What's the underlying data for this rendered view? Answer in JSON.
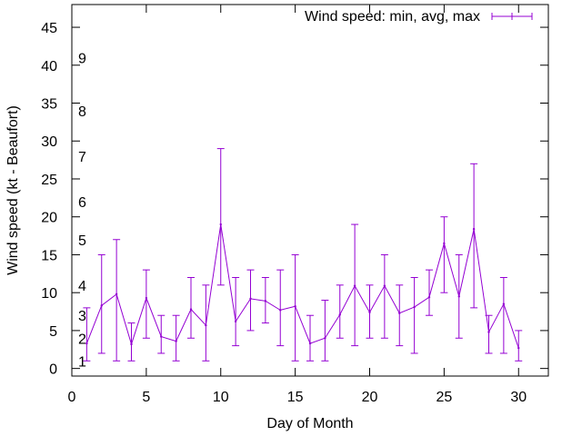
{
  "chart_data": {
    "type": "line",
    "title": "",
    "xlabel": "Day of Month",
    "ylabel": "Wind speed (kt - Beaufort)",
    "xlim": [
      0,
      32
    ],
    "ylim": [
      -1,
      48
    ],
    "xticks": [
      0,
      5,
      10,
      15,
      20,
      25,
      30
    ],
    "yticks": [
      0,
      5,
      10,
      15,
      20,
      25,
      30,
      35,
      40,
      45
    ],
    "legend": "Wind speed: min, avg, max",
    "legend_position": "top-right",
    "color": "#9400d3",
    "beaufort_labels": [
      {
        "label": "1",
        "kt": 1
      },
      {
        "label": "2",
        "kt": 4
      },
      {
        "label": "3",
        "kt": 7
      },
      {
        "label": "4",
        "kt": 11
      },
      {
        "label": "5",
        "kt": 17
      },
      {
        "label": "6",
        "kt": 22
      },
      {
        "label": "7",
        "kt": 28
      },
      {
        "label": "8",
        "kt": 34
      },
      {
        "label": "9",
        "kt": 41
      }
    ],
    "series": [
      {
        "name": "Wind speed: min, avg, max",
        "points": [
          {
            "x": 1,
            "avg": 3.3,
            "min": 1,
            "max": 8
          },
          {
            "x": 2,
            "avg": 8.3,
            "min": 2,
            "max": 15
          },
          {
            "x": 3,
            "avg": 9.8,
            "min": 1,
            "max": 17
          },
          {
            "x": 4,
            "avg": 3.2,
            "min": 1,
            "max": 6
          },
          {
            "x": 5,
            "avg": 9.3,
            "min": 4,
            "max": 13
          },
          {
            "x": 6,
            "avg": 4.2,
            "min": 2,
            "max": 7
          },
          {
            "x": 7,
            "avg": 3.6,
            "min": 1,
            "max": 7
          },
          {
            "x": 8,
            "avg": 7.8,
            "min": 4,
            "max": 12
          },
          {
            "x": 9,
            "avg": 5.7,
            "min": 1,
            "max": 11
          },
          {
            "x": 10,
            "avg": 19,
            "min": 11,
            "max": 29
          },
          {
            "x": 11,
            "avg": 6.2,
            "min": 3,
            "max": 12
          },
          {
            "x": 12,
            "avg": 9.2,
            "min": 5,
            "max": 13
          },
          {
            "x": 13,
            "avg": 8.9,
            "min": 6,
            "max": 12
          },
          {
            "x": 14,
            "avg": 7.7,
            "min": 3,
            "max": 13
          },
          {
            "x": 15,
            "avg": 8.2,
            "min": 1,
            "max": 15
          },
          {
            "x": 16,
            "avg": 3.3,
            "min": 1,
            "max": 7
          },
          {
            "x": 17,
            "avg": 4.0,
            "min": 1,
            "max": 9
          },
          {
            "x": 18,
            "avg": 7.1,
            "min": 4,
            "max": 11
          },
          {
            "x": 19,
            "avg": 10.9,
            "min": 3,
            "max": 19
          },
          {
            "x": 20,
            "avg": 7.4,
            "min": 4,
            "max": 11
          },
          {
            "x": 21,
            "avg": 10.9,
            "min": 4,
            "max": 15
          },
          {
            "x": 22,
            "avg": 7.3,
            "min": 3,
            "max": 11
          },
          {
            "x": 23,
            "avg": 8.1,
            "min": 2,
            "max": 12
          },
          {
            "x": 24,
            "avg": 9.4,
            "min": 7,
            "max": 13
          },
          {
            "x": 25,
            "avg": 16.5,
            "min": 10,
            "max": 20
          },
          {
            "x": 26,
            "avg": 9.5,
            "min": 4,
            "max": 15
          },
          {
            "x": 27,
            "avg": 18.4,
            "min": 8,
            "max": 27
          },
          {
            "x": 28,
            "avg": 4.8,
            "min": 2,
            "max": 7
          },
          {
            "x": 29,
            "avg": 8.5,
            "min": 2,
            "max": 12
          },
          {
            "x": 30,
            "avg": 2.7,
            "min": 1,
            "max": 5
          }
        ]
      }
    ]
  }
}
